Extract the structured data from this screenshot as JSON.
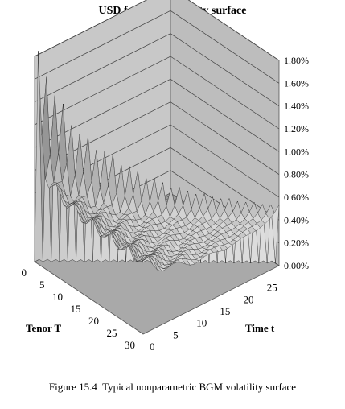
{
  "chart_data": {
    "type": "surface3d",
    "title": "USD forward volatility surface",
    "z_ticks": [
      "1.80%",
      "1.60%",
      "1.40%",
      "1.20%",
      "1.00%",
      "0.80%",
      "0.60%",
      "0.40%",
      "0.20%",
      "0.00%"
    ],
    "z_range": [
      0,
      1.8
    ],
    "tenor_axis": {
      "label": "Tenor T",
      "ticks": [
        "0",
        "5",
        "10",
        "15",
        "20",
        "25",
        "30"
      ],
      "range": [
        0,
        30
      ]
    },
    "time_axis": {
      "label": "Time t",
      "ticks": [
        "0",
        "5",
        "10",
        "15",
        "20",
        "25"
      ],
      "range": [
        0,
        29
      ]
    },
    "grid": true,
    "surface_description_units": "volatility in % vs Time t and Tenor T; surface defined only where T > t",
    "peak_vol": 1.75,
    "long_end_vol": 0.65,
    "min_vol": 0.1
  },
  "caption": {
    "label": "Figure 15.4",
    "text": "Typical nonparametric BGM volatility surface"
  }
}
